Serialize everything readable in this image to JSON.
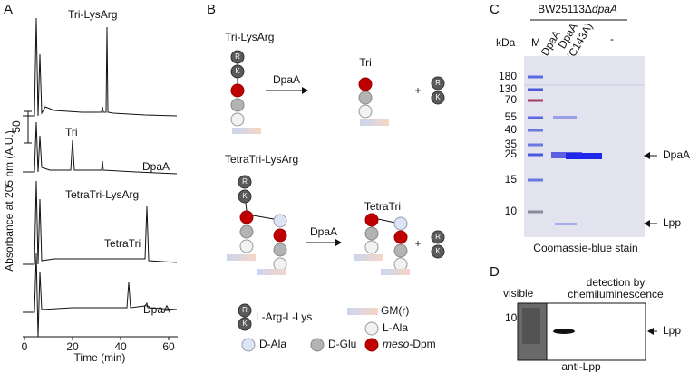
{
  "panel_a": {
    "label": "A",
    "y_axis_title": "Absorbance at 205 nm (A.U.)",
    "x_axis_title": "Time (min)",
    "scale_bar": 50,
    "x_ticks": [
      0,
      20,
      40,
      60
    ],
    "trace_labels": [
      "Tri-LysArg",
      "Tri",
      "DpaA",
      "TetraTri-LysArg",
      "TetraTri",
      "DpaA"
    ]
  },
  "panel_b": {
    "label": "B",
    "reactions": [
      {
        "substrate": "Tri-LysArg",
        "enzyme": "DpaA",
        "product": "Tri",
        "plus": "+"
      },
      {
        "substrate": "TetraTri-LysArg",
        "enzyme": "DpaA",
        "product": "TetraTri",
        "plus": "+"
      }
    ],
    "residue_letters": [
      "R",
      "K"
    ],
    "legend": {
      "lys_arg": "L-Arg-L-Lys",
      "gm": "GM(r)",
      "l_ala": "L-Ala",
      "d_ala": "D-Ala",
      "d_glu": "D-Glu",
      "dpm_prefix": "meso",
      "dpm": "-Dpm"
    }
  },
  "panel_c": {
    "label": "C",
    "strain": "BW25113Δ",
    "strain_gene": "dpaA",
    "kda": "kDa",
    "lanes": [
      "M",
      "DpaA",
      "DpaA",
      "(C143A)",
      "-"
    ],
    "markers": [
      180,
      130,
      70,
      55,
      40,
      35,
      25,
      15,
      10
    ],
    "arrows": [
      "DpaA",
      "Lpp"
    ],
    "caption": "Coomassie-blue stain"
  },
  "panel_d": {
    "label": "D",
    "visible": "visible",
    "detection": [
      "detection by",
      "chemiluminescence"
    ],
    "marker": 10,
    "arrow": "Lpp",
    "caption": "anti-Lpp"
  }
}
